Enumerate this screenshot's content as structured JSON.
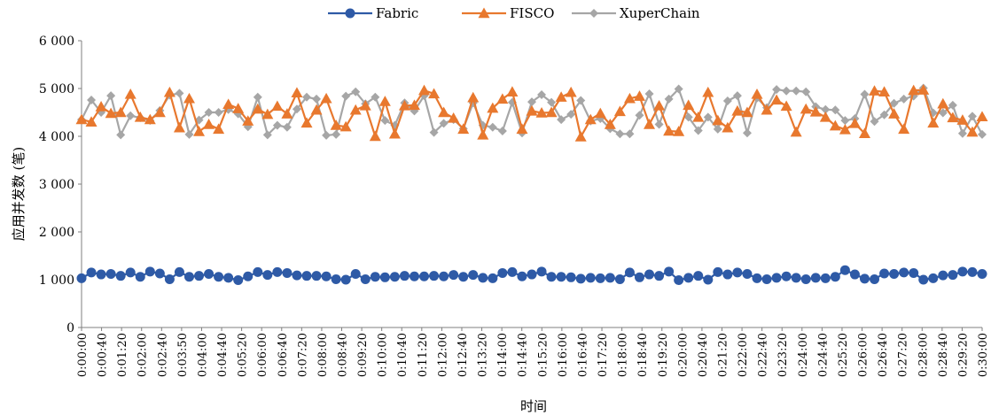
{
  "chart_data": {
    "type": "line",
    "title": "",
    "xlabel": "时间",
    "ylabel": "应用并发数 (笔)",
    "ylim": [
      0,
      6000
    ],
    "yticks": [
      0,
      1000,
      2000,
      3000,
      4000,
      5000,
      6000
    ],
    "ytick_labels": [
      "0",
      "1 000",
      "2 000",
      "3 000",
      "4 000",
      "5 000",
      "6 000"
    ],
    "grid": false,
    "legend_position": "top-center",
    "x_tick_labels": [
      "0:00:00",
      "0:00:40",
      "0:01:20",
      "0:02:00",
      "0:02:40",
      "0:03:50",
      "0:04:00",
      "0:04:40",
      "0:05:20",
      "0:06:00",
      "0:06:40",
      "0:07:20",
      "0:08:00",
      "0:08:40",
      "0:09:20",
      "0:10:00",
      "0:10:40",
      "0:11:20",
      "0:12:00",
      "0:12:40",
      "0:13:20",
      "0:14:00",
      "0:14:40",
      "0:15:20",
      "0:16:00",
      "0:16:40",
      "0:17:20",
      "0:18:00",
      "0:18:40",
      "0:19:20",
      "0:20:00",
      "0:20:40",
      "0:21:20",
      "0:22:00",
      "0:22:40",
      "0:23:20",
      "0:24:00",
      "0:24:40",
      "0:25:20",
      "0:26:00",
      "0:26:40",
      "0:27:20",
      "0:28:00",
      "0:28:40",
      "0:29:20",
      "0:30:00"
    ],
    "series": [
      {
        "name": "Fabric",
        "color": "#2e5aa6",
        "marker": "circle",
        "values": [
          1030,
          1150,
          1110,
          1120,
          1080,
          1150,
          1060,
          1170,
          1130,
          1010,
          1160,
          1060,
          1080,
          1120,
          1060,
          1040,
          990,
          1070,
          1160,
          1100,
          1160,
          1140,
          1090,
          1080,
          1080,
          1070,
          1010,
          1000,
          1120,
          1010,
          1060,
          1050,
          1060,
          1080,
          1070,
          1070,
          1080,
          1070,
          1100,
          1060,
          1100,
          1040,
          1030,
          1140,
          1160,
          1070,
          1110,
          1170,
          1060,
          1060,
          1050,
          1020,
          1040,
          1030,
          1040,
          1010,
          1150,
          1050,
          1110,
          1080,
          1170,
          990,
          1040,
          1080,
          1000,
          1160,
          1110,
          1150,
          1120,
          1030,
          1010,
          1040,
          1070,
          1040,
          1010,
          1040,
          1030,
          1060,
          1200,
          1110,
          1020,
          1010,
          1130,
          1120,
          1150,
          1140,
          1000,
          1030,
          1090,
          1100,
          1170,
          1160,
          1120
        ]
      },
      {
        "name": "FISCO",
        "color": "#e8782e",
        "marker": "triangle",
        "values": [
          4350,
          4300,
          4620,
          4480,
          4500,
          4880,
          4400,
          4350,
          4500,
          4920,
          4180,
          4790,
          4100,
          4250,
          4150,
          4670,
          4580,
          4320,
          4570,
          4460,
          4630,
          4470,
          4910,
          4280,
          4550,
          4790,
          4230,
          4200,
          4550,
          4640,
          4000,
          4730,
          4050,
          4640,
          4650,
          4960,
          4890,
          4500,
          4380,
          4150,
          4810,
          4030,
          4590,
          4780,
          4930,
          4150,
          4530,
          4490,
          4500,
          4820,
          4920,
          3990,
          4350,
          4480,
          4250,
          4520,
          4790,
          4840,
          4250,
          4640,
          4110,
          4100,
          4650,
          4400,
          4920,
          4330,
          4180,
          4530,
          4500,
          4880,
          4550,
          4760,
          4630,
          4090,
          4570,
          4510,
          4400,
          4220,
          4140,
          4270,
          4060,
          4950,
          4930,
          4470,
          4150,
          4960,
          4970,
          4280,
          4680,
          4390,
          4340,
          4090,
          4410
        ]
      },
      {
        "name": "XuperChain",
        "color": "#a6a6a6",
        "marker": "diamond",
        "values": [
          4350,
          4760,
          4500,
          4850,
          4030,
          4430,
          4390,
          4330,
          4540,
          4860,
          4900,
          4040,
          4340,
          4500,
          4500,
          4560,
          4470,
          4200,
          4820,
          4030,
          4230,
          4190,
          4570,
          4820,
          4780,
          4020,
          4040,
          4840,
          4930,
          4680,
          4820,
          4330,
          4230,
          4700,
          4530,
          4850,
          4080,
          4270,
          4350,
          4160,
          4700,
          4230,
          4190,
          4110,
          4710,
          4070,
          4720,
          4870,
          4710,
          4350,
          4460,
          4750,
          4320,
          4370,
          4160,
          4050,
          4050,
          4440,
          4890,
          4250,
          4780,
          4990,
          4400,
          4120,
          4400,
          4150,
          4740,
          4850,
          4070,
          4800,
          4600,
          4980,
          4950,
          4950,
          4930,
          4620,
          4560,
          4550,
          4330,
          4370,
          4880,
          4310,
          4450,
          4690,
          4780,
          4840,
          5010,
          4490,
          4490,
          4650,
          4060,
          4420,
          4040
        ]
      }
    ]
  }
}
